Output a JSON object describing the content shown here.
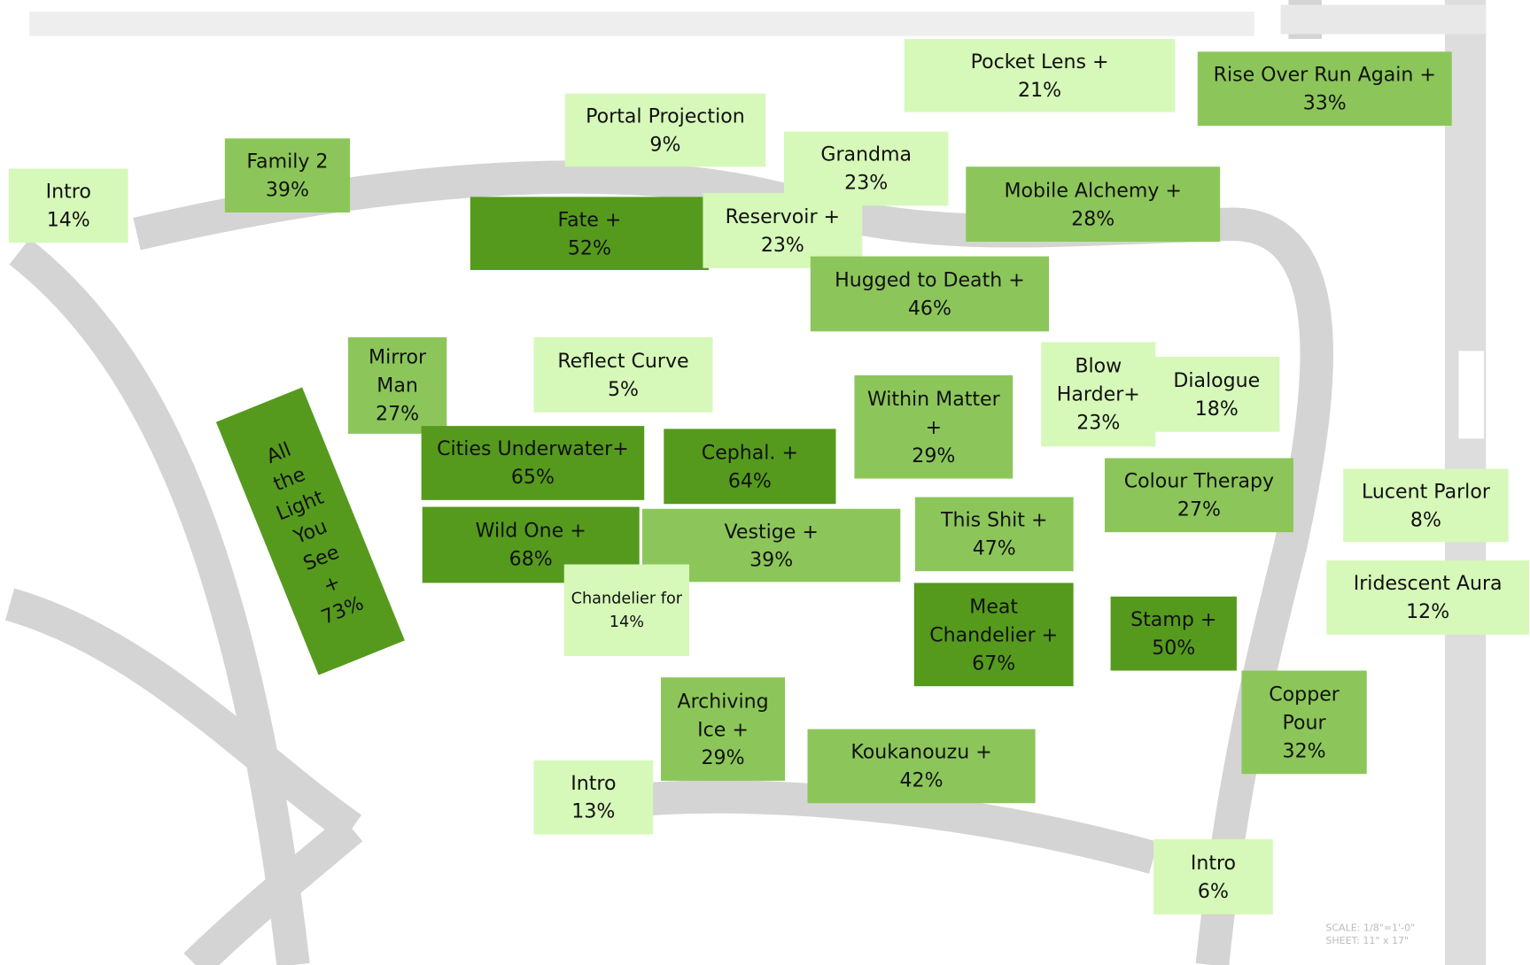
{
  "rooms": [
    {
      "name": "Intro",
      "value": 14,
      "value_label": "14%"
    },
    {
      "name": "Family 2",
      "value": 39,
      "value_label": "39%"
    },
    {
      "name": "Portal Projection",
      "value": 9,
      "value_label": "9%"
    },
    {
      "name": "Grandma",
      "value": 23,
      "value_label": "23%"
    },
    {
      "name": "Pocket Lens +",
      "value": 21,
      "value_label": "21%"
    },
    {
      "name": "Rise Over Run Again +",
      "value": 33,
      "value_label": "33%"
    },
    {
      "name": "Fate +",
      "value": 52,
      "value_label": "52%"
    },
    {
      "name": "Reservoir +",
      "value": 23,
      "value_label": "23%"
    },
    {
      "name": "Mobile Alchemy +",
      "value": 28,
      "value_label": "28%"
    },
    {
      "name": "Hugged to Death +",
      "value": 46,
      "value_label": "46%"
    },
    {
      "name": "Mirror Man",
      "value": 27,
      "value_label": "27%"
    },
    {
      "name": "Reflect Curve",
      "value": 5,
      "value_label": "5%"
    },
    {
      "name": "All the Light You See +",
      "value": 73,
      "value_label": "73%"
    },
    {
      "name": "Cities Underwater+",
      "value": 65,
      "value_label": "65%"
    },
    {
      "name": "Cephal. +",
      "value": 64,
      "value_label": "64%"
    },
    {
      "name": "Within Matter +",
      "value": 29,
      "value_label": "29%"
    },
    {
      "name": "Blow Harder+",
      "value": 23,
      "value_label": "23%"
    },
    {
      "name": "Dialogue",
      "value": 18,
      "value_label": "18%"
    },
    {
      "name": "Colour Therapy",
      "value": 27,
      "value_label": "27%"
    },
    {
      "name": "Lucent Parlor",
      "value": 8,
      "value_label": "8%"
    },
    {
      "name": "Iridescent Aura",
      "value": 12,
      "value_label": "12%"
    },
    {
      "name": "Wild One +",
      "value": 68,
      "value_label": "68%"
    },
    {
      "name": "Vestige +",
      "value": 39,
      "value_label": "39%"
    },
    {
      "name": "This Shit +",
      "value": 47,
      "value_label": "47%"
    },
    {
      "name": "Chandelier for",
      "value": 14,
      "value_label": "14%"
    },
    {
      "name": "Meat Chandelier +",
      "value": 67,
      "value_label": "67%"
    },
    {
      "name": "Stamp +",
      "value": 50,
      "value_label": "50%"
    },
    {
      "name": "Copper Pour",
      "value": 32,
      "value_label": "32%"
    },
    {
      "name": "Archiving Ice +",
      "value": 29,
      "value_label": "29%"
    },
    {
      "name": "Koukanouzu +",
      "value": 42,
      "value_label": "42%"
    },
    {
      "name": "Intro",
      "value": 13,
      "value_label": "13%"
    },
    {
      "name": "Intro",
      "value": 6,
      "value_label": "6%"
    }
  ],
  "scale_note": [
    "SCALE: 1/8\"=1'-0\"",
    "SHEET: 11\" x 17\""
  ]
}
